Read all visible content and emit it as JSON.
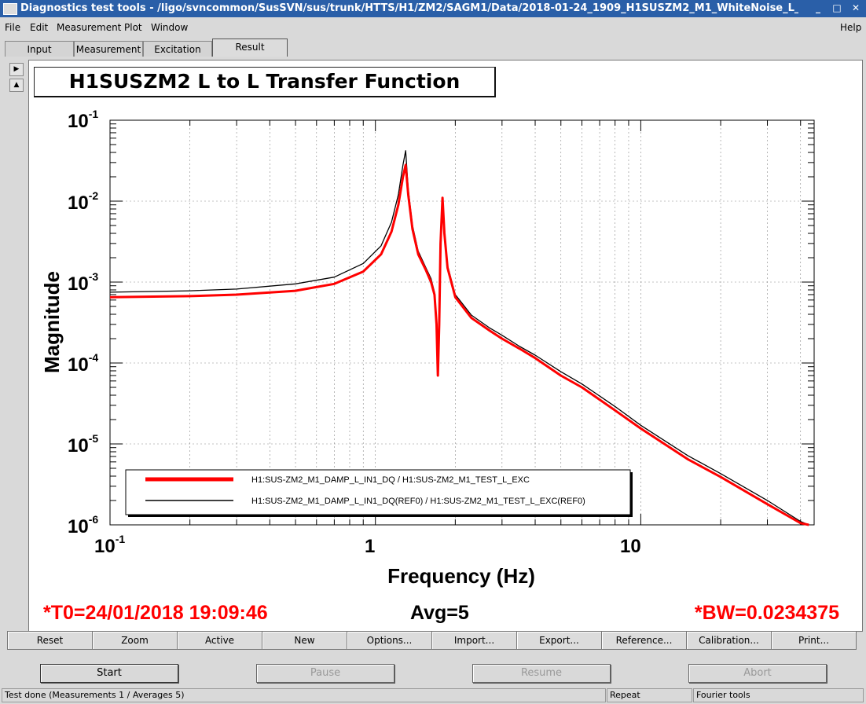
{
  "window": {
    "title": "Diagnostics test tools - /ligo/svncommon/SusSVN/sus/trunk/HTTS/H1/ZM2/SAGM1/Data/2018-01-24_1909_H1SUSZM2_M1_WhiteNoise_L_"
  },
  "menu": {
    "file": "File",
    "edit": "Edit",
    "measurement": "Measurement",
    "plot": "Plot",
    "window": "Window",
    "help": "Help"
  },
  "tabs": [
    "Input",
    "Measurement",
    "Excitation",
    "Result"
  ],
  "plot": {
    "title": "H1SUSZM2 L to L Transfer Function",
    "t0": "*T0=24/01/2018 19:09:46",
    "avg": "Avg=5",
    "bw": "*BW=0.0234375"
  },
  "chart_data": {
    "type": "line",
    "title": "H1SUSZM2 L to L Transfer Function",
    "xlabel": "Frequency (Hz)",
    "ylabel": "Magnitude",
    "xscale": "log",
    "yscale": "log",
    "xlim": [
      0.1,
      45
    ],
    "ylim": [
      1e-06,
      0.1
    ],
    "xtick_labels": [
      "10^-1",
      "1",
      "10"
    ],
    "ytick_labels": [
      "10^-1",
      "10^-2",
      "10^-3",
      "10^-4",
      "10^-5",
      "10^-6"
    ],
    "grid": true,
    "legend_position": "bottom-left",
    "series": [
      {
        "name": "H1:SUS-ZM2_M1_DAMP_L_IN1_DQ / H1:SUS-ZM2_M1_TEST_L_EXC",
        "color": "#ff0000",
        "x": [
          0.1,
          0.2,
          0.3,
          0.5,
          0.7,
          0.9,
          1.05,
          1.15,
          1.22,
          1.27,
          1.3,
          1.33,
          1.38,
          1.45,
          1.55,
          1.62,
          1.67,
          1.7,
          1.72,
          1.74,
          1.76,
          1.79,
          1.82,
          1.87,
          2.0,
          2.3,
          2.7,
          3.0,
          3.5,
          4.0,
          5.0,
          6.0,
          8.0,
          10.0,
          15.0,
          20.0,
          30.0,
          40.0,
          43.0
        ],
        "y": [
          0.00065,
          0.00067,
          0.0007,
          0.00078,
          0.00095,
          0.00135,
          0.0022,
          0.0042,
          0.009,
          0.02,
          0.028,
          0.012,
          0.0045,
          0.0022,
          0.0014,
          0.001,
          0.0007,
          0.0003,
          7e-05,
          0.0003,
          0.003,
          0.011,
          0.004,
          0.0015,
          0.00065,
          0.00036,
          0.00025,
          0.0002,
          0.00015,
          0.000115,
          7e-05,
          5e-05,
          2.6e-05,
          1.55e-05,
          6.5e-06,
          3.9e-06,
          1.8e-06,
          1.05e-06,
          1e-06
        ]
      },
      {
        "name": "H1:SUS-ZM2_M1_DAMP_L_IN1_DQ(REF0) / H1:SUS-ZM2_M1_TEST_L_EXC(REF0)",
        "color": "#000000",
        "x": [
          0.1,
          0.2,
          0.3,
          0.5,
          0.7,
          0.9,
          1.05,
          1.15,
          1.22,
          1.27,
          1.3,
          1.33,
          1.38,
          1.45,
          1.55,
          1.62,
          1.67,
          1.7,
          1.72,
          1.74,
          1.76,
          1.79,
          1.82,
          1.87,
          2.0,
          2.3,
          2.7,
          3.0,
          3.5,
          4.0,
          5.0,
          6.0,
          8.0,
          10.0,
          15.0,
          20.0,
          30.0,
          40.0,
          43.0
        ],
        "y": [
          0.00075,
          0.00078,
          0.00082,
          0.00095,
          0.00115,
          0.0017,
          0.0028,
          0.0055,
          0.012,
          0.028,
          0.042,
          0.014,
          0.005,
          0.0024,
          0.0015,
          0.0011,
          0.00075,
          0.0003,
          7e-05,
          0.0003,
          0.003,
          0.011,
          0.004,
          0.0016,
          0.0007,
          0.00039,
          0.00027,
          0.00022,
          0.00016,
          0.000125,
          7.8e-05,
          5.5e-05,
          2.9e-05,
          1.7e-05,
          7.2e-06,
          4.3e-06,
          2e-06,
          1.1e-06,
          1e-06
        ]
      }
    ]
  },
  "buttons": [
    "Reset",
    "Zoom",
    "Active",
    "New",
    "Options...",
    "Import...",
    "Export...",
    "Reference...",
    "Calibration...",
    "Print..."
  ],
  "controls": {
    "start": "Start",
    "pause": "Pause",
    "resume": "Resume",
    "abort": "Abort"
  },
  "status": {
    "message": "Test done (Measurements 1 / Averages 5)",
    "mode": "Repeat",
    "tool": "Fourier tools"
  }
}
